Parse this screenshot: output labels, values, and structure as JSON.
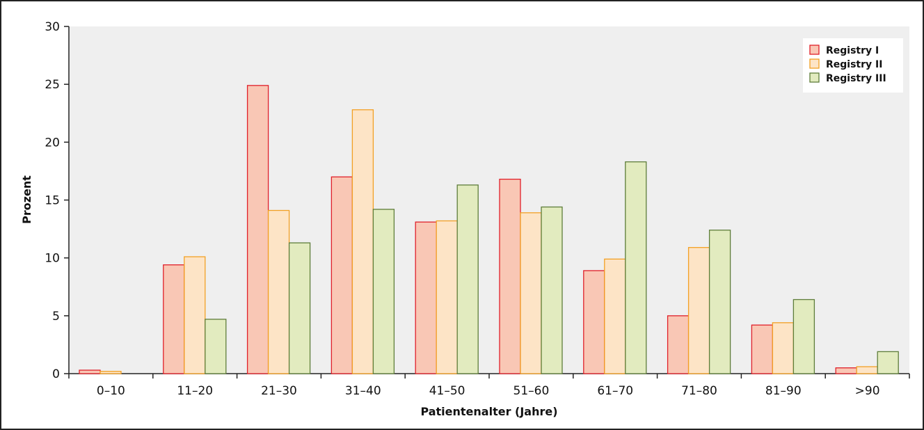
{
  "chart_data": {
    "type": "bar",
    "title": "",
    "xlabel": "Patientenalter (Jahre)",
    "ylabel": "Prozent",
    "ylim": [
      0,
      30
    ],
    "yticks": [
      "0",
      "5",
      "10",
      "15",
      "20",
      "25",
      "30"
    ],
    "grid": false,
    "legend_position": "top-right",
    "categories": [
      "0–10",
      "11–20",
      "21–30",
      "31–40",
      "41–50",
      "51–60",
      "61–70",
      "71–80",
      "81–90",
      ">90"
    ],
    "series": [
      {
        "name": "Registry I",
        "fill": "#f9c7b5",
        "stroke": "#e0202a",
        "values": [
          0.3,
          9.4,
          24.9,
          17.0,
          13.1,
          16.8,
          8.9,
          5.0,
          4.2,
          0.5
        ]
      },
      {
        "name": "Registry II",
        "fill": "#fde4c6",
        "stroke": "#f2a024",
        "values": [
          0.2,
          10.1,
          14.1,
          22.8,
          13.2,
          13.9,
          9.9,
          10.9,
          4.4,
          0.6
        ]
      },
      {
        "name": "Registry III",
        "fill": "#e2ebbf",
        "stroke": "#5e7d3a",
        "values": [
          0,
          4.7,
          11.3,
          14.2,
          16.3,
          14.4,
          18.3,
          12.4,
          6.4,
          1.9
        ]
      }
    ]
  },
  "colors": {
    "plot_background": "#efefef",
    "frame": "#222222"
  }
}
